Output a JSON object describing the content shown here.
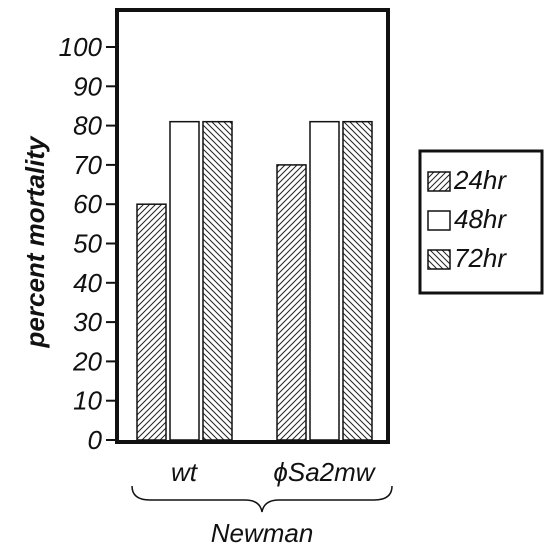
{
  "chart_data": {
    "type": "bar",
    "ylabel": "percent mortality",
    "ylim": [
      0,
      100
    ],
    "yticks": [
      0,
      10,
      20,
      30,
      40,
      50,
      60,
      70,
      80,
      90,
      100
    ],
    "categories": [
      "wt",
      "ϕSa2mw"
    ],
    "group_label": "Newman",
    "series": [
      {
        "name": "24hr",
        "values": [
          60,
          70
        ],
        "pattern": "hatch-back"
      },
      {
        "name": "48hr",
        "values": [
          81,
          81
        ],
        "pattern": "white"
      },
      {
        "name": "72hr",
        "values": [
          81,
          81
        ],
        "pattern": "hatch-forward"
      }
    ],
    "legend_position": "right",
    "grid": false
  }
}
